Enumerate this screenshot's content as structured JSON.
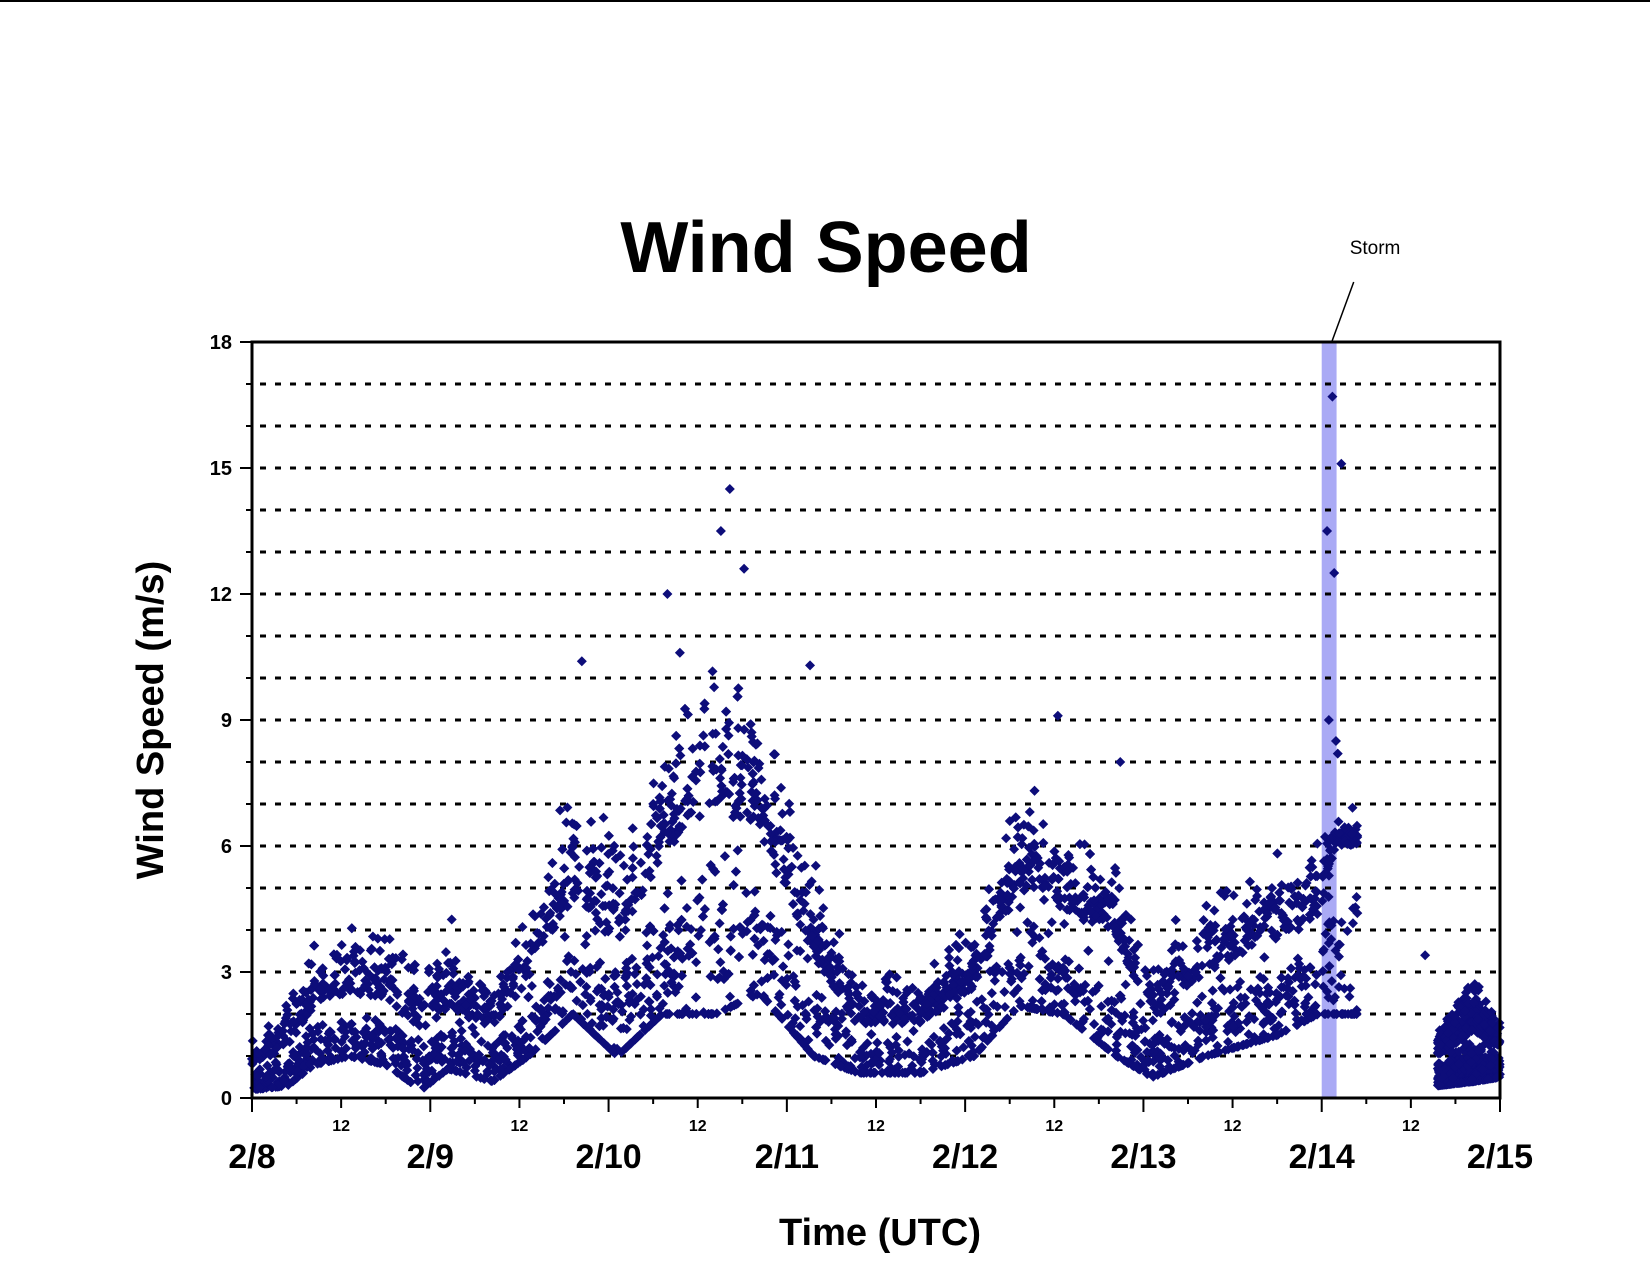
{
  "chart_data": {
    "type": "scatter",
    "title": "Wind Speed",
    "xlabel": "Time (UTC)",
    "ylabel": "Wind Speed (m/s)",
    "ylim": [
      0,
      18
    ],
    "yticks": [
      "0",
      "3",
      "6",
      "9",
      "12",
      "15",
      "18"
    ],
    "xlim": [
      "2/8 00:00",
      "2/15 00:00"
    ],
    "x_major_ticks": [
      "2/8",
      "2/9",
      "2/10",
      "2/11",
      "2/12",
      "2/13",
      "2/14",
      "2/15"
    ],
    "x_minor_ticks": [
      "12",
      "12",
      "12",
      "12",
      "12",
      "12",
      "12"
    ],
    "grid": "horizontal dotted lines every 1 m/s",
    "marker": "diamond",
    "color": "#0d0d7a",
    "storm_color": "#aaaaf5",
    "highlight": {
      "label": "Storm",
      "start": "2/14 00:00",
      "end": "2/14 02:00"
    },
    "data_gap": {
      "start": "2/14 06:00",
      "end": "2/14 22:00"
    },
    "series": [
      {
        "x_unit": "day index from 2/8 (0 = 2/8 00:00)",
        "envelope": [
          {
            "t": 0.0,
            "low": 0.2,
            "mid": 0.8,
            "high": 1.4
          },
          {
            "t": 0.2,
            "low": 0.3,
            "mid": 1.2,
            "high": 2.8
          },
          {
            "t": 0.35,
            "low": 0.8,
            "mid": 2.2,
            "high": 3.8
          },
          {
            "t": 0.55,
            "low": 1.0,
            "mid": 2.5,
            "high": 4.6
          },
          {
            "t": 0.75,
            "low": 0.8,
            "mid": 2.4,
            "high": 4.6
          },
          {
            "t": 0.95,
            "low": 0.2,
            "mid": 1.6,
            "high": 3.8
          },
          {
            "t": 1.1,
            "low": 0.7,
            "mid": 2.1,
            "high": 4.6
          },
          {
            "t": 1.35,
            "low": 0.4,
            "mid": 1.7,
            "high": 3.0
          },
          {
            "t": 1.55,
            "low": 1.0,
            "mid": 2.8,
            "high": 4.8
          },
          {
            "t": 1.8,
            "low": 2.0,
            "mid": 4.8,
            "high": 8.0
          },
          {
            "t": 2.05,
            "low": 1.0,
            "mid": 3.6,
            "high": 6.8
          },
          {
            "t": 2.3,
            "low": 2.0,
            "mid": 5.8,
            "high": 9.0
          },
          {
            "t": 2.6,
            "low": 2.0,
            "mid": 7.0,
            "high": 11.5
          },
          {
            "t": 2.85,
            "low": 2.5,
            "mid": 6.2,
            "high": 9.8
          },
          {
            "t": 3.15,
            "low": 1.0,
            "mid": 3.4,
            "high": 6.0
          },
          {
            "t": 3.4,
            "low": 0.6,
            "mid": 1.7,
            "high": 3.2
          },
          {
            "t": 3.75,
            "low": 0.6,
            "mid": 1.8,
            "high": 3.2
          },
          {
            "t": 4.05,
            "low": 1.0,
            "mid": 2.6,
            "high": 4.5
          },
          {
            "t": 4.3,
            "low": 2.2,
            "mid": 5.0,
            "high": 8.0
          },
          {
            "t": 4.55,
            "low": 2.0,
            "mid": 4.5,
            "high": 7.0
          },
          {
            "t": 4.85,
            "low": 1.0,
            "mid": 3.8,
            "high": 6.0
          },
          {
            "t": 5.05,
            "low": 0.5,
            "mid": 1.8,
            "high": 3.6
          },
          {
            "t": 5.35,
            "low": 1.0,
            "mid": 3.0,
            "high": 5.5
          },
          {
            "t": 5.75,
            "low": 1.5,
            "mid": 3.8,
            "high": 6.5
          },
          {
            "t": 5.98,
            "low": 2.0,
            "mid": 4.2,
            "high": 6.5
          },
          {
            "t": 6.08,
            "low": 2.0,
            "mid": 6.0,
            "high": 16.7
          },
          {
            "t": 6.2,
            "low": 2.0,
            "mid": 6.0,
            "high": 15.0
          }
        ],
        "late_segment": [
          {
            "t": 6.65,
            "low": 0.3,
            "mid": 1.0,
            "high": 2.0
          },
          {
            "t": 6.85,
            "low": 0.4,
            "mid": 1.6,
            "high": 3.0
          },
          {
            "t": 7.0,
            "low": 0.5,
            "mid": 1.2,
            "high": 2.2
          }
        ],
        "outliers": [
          {
            "x": 1.85,
            "y": 10.4
          },
          {
            "x": 2.33,
            "y": 12.0
          },
          {
            "x": 2.4,
            "y": 10.6
          },
          {
            "x": 2.63,
            "y": 13.5
          },
          {
            "x": 2.68,
            "y": 14.5
          },
          {
            "x": 2.76,
            "y": 12.6
          },
          {
            "x": 3.13,
            "y": 10.3
          },
          {
            "x": 4.52,
            "y": 9.1
          },
          {
            "x": 4.87,
            "y": 8.0
          },
          {
            "x": 6.03,
            "y": 13.5
          },
          {
            "x": 6.04,
            "y": 9.0
          },
          {
            "x": 6.06,
            "y": 16.7
          },
          {
            "x": 6.07,
            "y": 12.5
          },
          {
            "x": 6.08,
            "y": 8.5
          },
          {
            "x": 6.09,
            "y": 8.2
          },
          {
            "x": 6.11,
            "y": 15.1
          },
          {
            "x": 6.58,
            "y": 3.4
          }
        ]
      }
    ]
  }
}
